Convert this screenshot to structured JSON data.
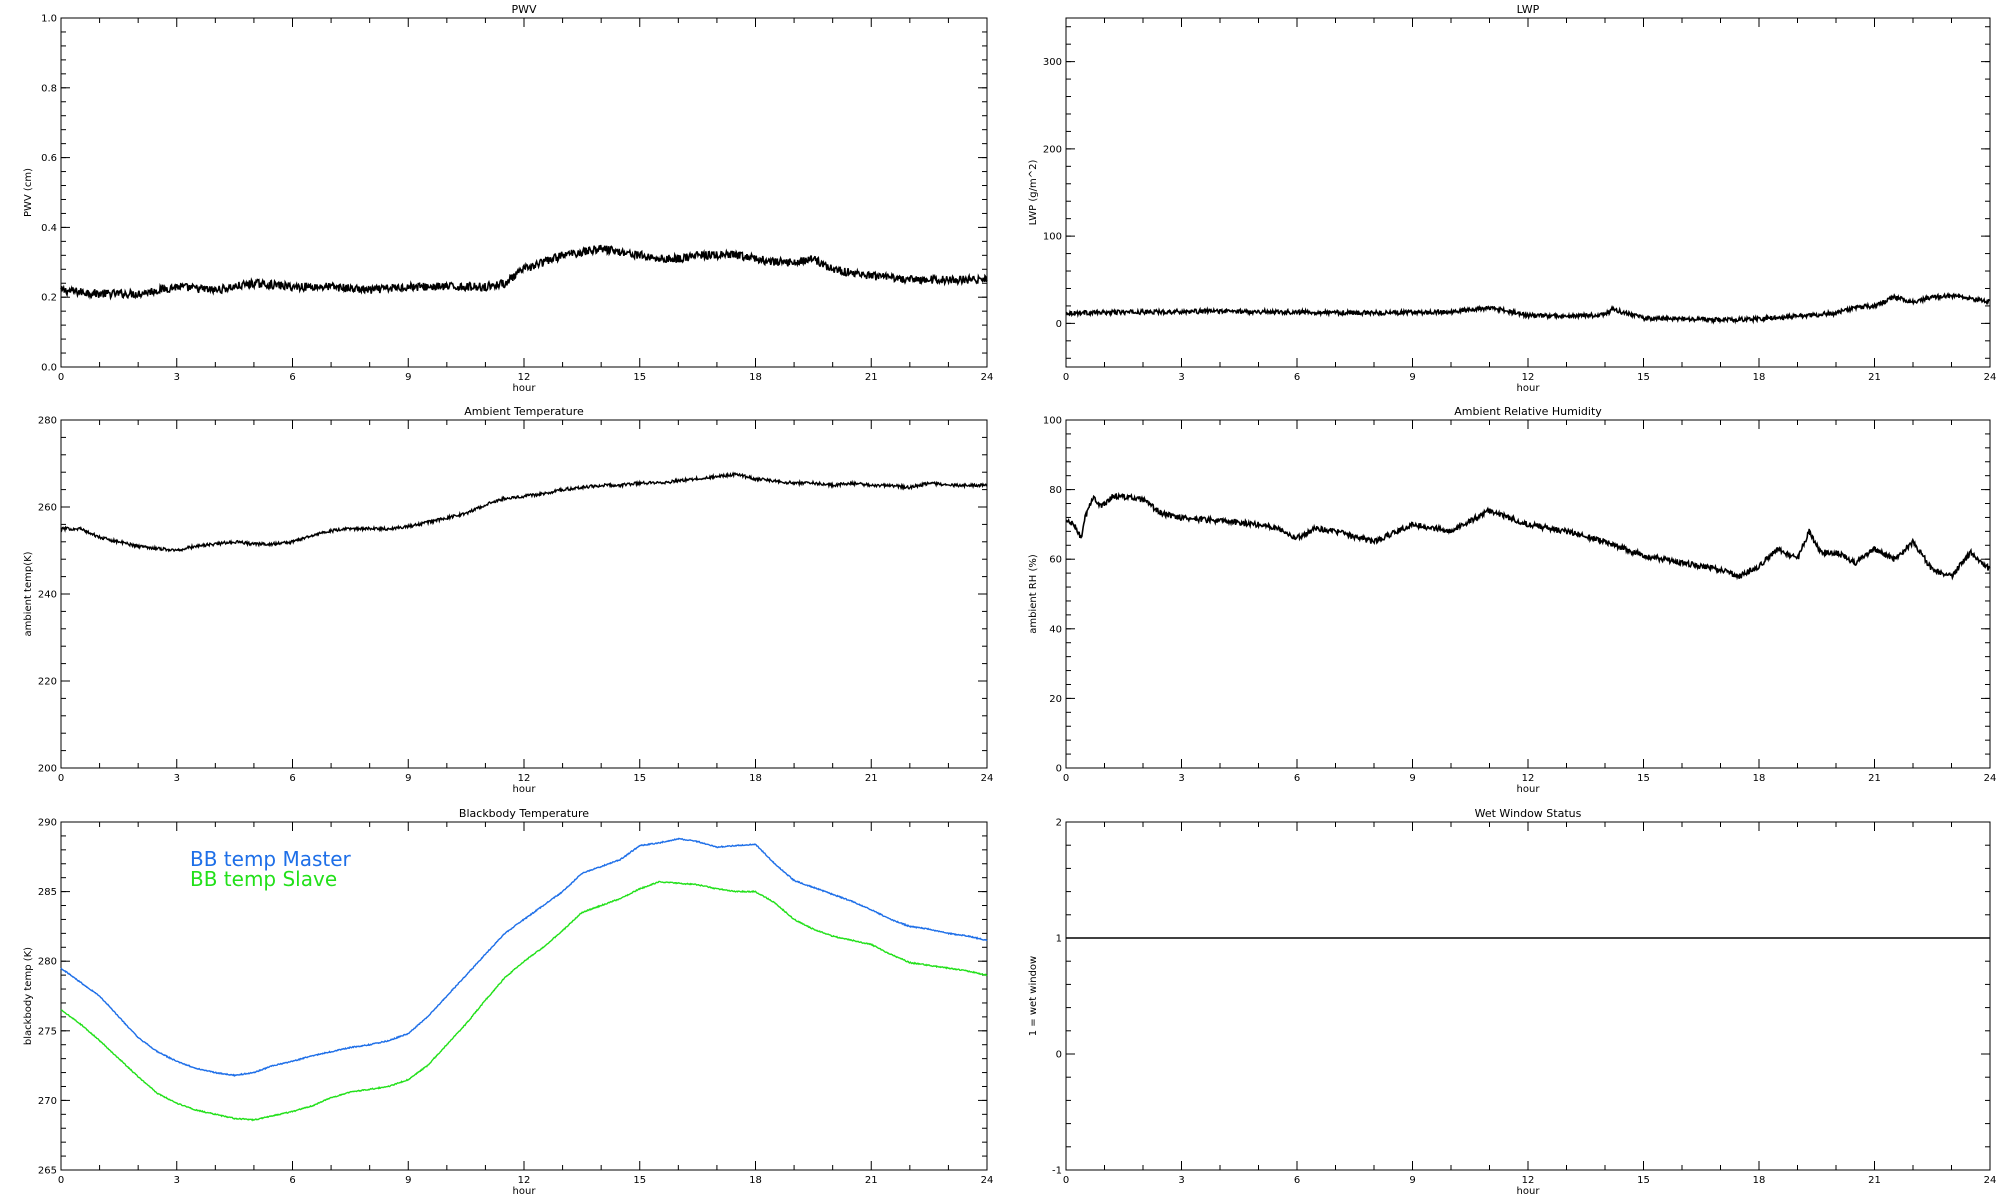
{
  "chart_data": [
    {
      "id": "pwv",
      "type": "line",
      "title": "PWV",
      "xlabel": "hour",
      "ylabel": "PWV (cm)",
      "xlim": [
        0,
        24
      ],
      "ylim": [
        0,
        1
      ],
      "xticks": [
        "0",
        "3",
        "6",
        "9",
        "12",
        "15",
        "18",
        "21",
        "24"
      ],
      "yticks": [
        "0.0",
        "0.2",
        "0.4",
        "0.6",
        "0.8",
        "1.0"
      ],
      "series": [
        {
          "color": "#000000",
          "noise": 0.012,
          "x": [
            0,
            1,
            2,
            3,
            4,
            5,
            6,
            7,
            8,
            9,
            10,
            10.5,
            11,
            11.5,
            12,
            12.5,
            13,
            13.5,
            14,
            14.5,
            15,
            15.5,
            16,
            16.5,
            17,
            17.5,
            18,
            18.5,
            19,
            19.5,
            20,
            21,
            22,
            23,
            24
          ],
          "y": [
            0.22,
            0.21,
            0.21,
            0.23,
            0.22,
            0.24,
            0.23,
            0.23,
            0.22,
            0.23,
            0.23,
            0.23,
            0.23,
            0.24,
            0.28,
            0.3,
            0.32,
            0.33,
            0.34,
            0.33,
            0.32,
            0.31,
            0.31,
            0.32,
            0.32,
            0.32,
            0.31,
            0.3,
            0.3,
            0.31,
            0.28,
            0.26,
            0.25,
            0.25,
            0.25
          ]
        }
      ]
    },
    {
      "id": "lwp",
      "type": "line",
      "title": "LWP",
      "xlabel": "hour",
      "ylabel": "LWP (g/m^2)",
      "xlim": [
        0,
        24
      ],
      "ylim": [
        -50,
        350
      ],
      "xticks": [
        "0",
        "3",
        "6",
        "9",
        "12",
        "15",
        "18",
        "21",
        "24"
      ],
      "yticks": [
        "0",
        "100",
        "200",
        "300"
      ],
      "series": [
        {
          "color": "#000000",
          "noise": 2.5,
          "x": [
            0,
            2,
            4,
            6,
            8,
            10,
            11,
            12,
            13,
            14,
            14.2,
            15,
            16,
            17,
            18,
            19,
            20,
            20.5,
            21,
            21.5,
            22,
            22.5,
            23,
            23.5,
            24
          ],
          "y": [
            12,
            13,
            14,
            13,
            12,
            13,
            18,
            9,
            8,
            10,
            16,
            6,
            5,
            4,
            5,
            8,
            12,
            18,
            20,
            30,
            25,
            30,
            32,
            28,
            25
          ]
        }
      ]
    },
    {
      "id": "ambient-temp",
      "type": "line",
      "title": "Ambient Temperature",
      "xlabel": "hour",
      "ylabel": "ambient temp(K)",
      "xlim": [
        0,
        24
      ],
      "ylim": [
        200,
        280
      ],
      "xticks": [
        "0",
        "3",
        "6",
        "9",
        "12",
        "15",
        "18",
        "21",
        "24"
      ],
      "yticks": [
        "200",
        "220",
        "240",
        "260",
        "280"
      ],
      "series": [
        {
          "color": "#000000",
          "noise": 0.35,
          "x": [
            0,
            0.5,
            1,
            1.5,
            2,
            2.5,
            3,
            3.5,
            4,
            4.5,
            5,
            5.5,
            6,
            6.5,
            7,
            7.5,
            8,
            8.5,
            9,
            9.5,
            10,
            10.5,
            11,
            11.5,
            12,
            12.5,
            13,
            13.5,
            14,
            14.5,
            15,
            15.5,
            16,
            16.5,
            17,
            17.5,
            18,
            18.5,
            19,
            19.5,
            20,
            20.5,
            21,
            21.5,
            22,
            22.5,
            23,
            23.5,
            24
          ],
          "y": [
            255,
            255,
            253,
            252,
            251,
            250.5,
            250,
            251,
            251.5,
            252,
            251.5,
            251.5,
            252,
            253.5,
            254.5,
            255,
            255,
            255,
            255.5,
            256.5,
            257.5,
            258.5,
            260.5,
            262,
            262.5,
            263,
            264,
            264.5,
            265,
            265,
            265.5,
            265.5,
            266,
            266.5,
            267,
            267.5,
            266.5,
            266,
            265.5,
            265.5,
            265,
            265.5,
            265,
            265,
            264.5,
            265.5,
            265,
            265,
            265
          ]
        }
      ]
    },
    {
      "id": "ambient-rh",
      "type": "line",
      "title": "Ambient Relative Humidity",
      "xlabel": "hour",
      "ylabel": "ambient RH (%)",
      "xlim": [
        0,
        24
      ],
      "ylim": [
        0,
        100
      ],
      "xticks": [
        "0",
        "3",
        "6",
        "9",
        "12",
        "15",
        "18",
        "21",
        "24"
      ],
      "yticks": [
        "0",
        "20",
        "40",
        "60",
        "80",
        "100"
      ],
      "series": [
        {
          "color": "#000000",
          "noise": 0.8,
          "x": [
            0,
            0.2,
            0.4,
            0.5,
            0.7,
            0.9,
            1.2,
            1.5,
            2,
            2.5,
            3,
            4,
            5,
            5.5,
            6,
            6.5,
            7,
            8,
            9,
            9.5,
            10,
            10.5,
            11,
            11.5,
            12,
            13,
            14,
            15,
            16,
            17,
            17.5,
            18,
            18.5,
            19,
            19.3,
            19.6,
            20,
            20.5,
            21,
            21.5,
            22,
            22.5,
            23,
            23.5,
            24
          ],
          "y": [
            71,
            70,
            66,
            72,
            78,
            75,
            78,
            78,
            77,
            73,
            72,
            71,
            70,
            69,
            66,
            69,
            68,
            65,
            70,
            69,
            68,
            71,
            74,
            72,
            70,
            68,
            65,
            61,
            59,
            57,
            55,
            58,
            63,
            60,
            68,
            62,
            62,
            59,
            63,
            60,
            65,
            57,
            55,
            62,
            57
          ]
        }
      ]
    },
    {
      "id": "blackbody-temp",
      "type": "line",
      "title": "Blackbody Temperature",
      "xlabel": "hour",
      "ylabel": "blackbody temp (K)",
      "xlim": [
        0,
        24
      ],
      "ylim": [
        265,
        290
      ],
      "xticks": [
        "0",
        "3",
        "6",
        "9",
        "12",
        "15",
        "18",
        "21",
        "24"
      ],
      "yticks": [
        "265",
        "270",
        "275",
        "280",
        "285",
        "290"
      ],
      "series": [
        {
          "name": "BB temp Master",
          "color": "#1e6fe8",
          "noise": 0.04,
          "x": [
            0,
            0.5,
            1,
            1.5,
            2,
            2.5,
            3,
            3.5,
            4,
            4.5,
            5,
            5.5,
            6,
            6.5,
            7,
            7.5,
            8,
            8.5,
            9,
            9.5,
            10,
            10.5,
            11,
            11.5,
            12,
            12.5,
            13,
            13.5,
            14,
            14.5,
            15,
            15.5,
            16,
            16.5,
            17,
            17.5,
            18,
            18.5,
            19,
            19.5,
            20,
            20.5,
            21,
            21.5,
            22,
            22.5,
            23,
            23.5,
            24
          ],
          "y": [
            279.5,
            278.5,
            277.5,
            276,
            274.5,
            273.5,
            272.8,
            272.3,
            272,
            271.8,
            272,
            272.5,
            272.8,
            273.2,
            273.5,
            273.8,
            274,
            274.3,
            274.8,
            276,
            277.5,
            279,
            280.5,
            282,
            283,
            284,
            285,
            286.3,
            286.8,
            287.3,
            288.3,
            288.5,
            288.8,
            288.6,
            288.2,
            288.3,
            288.4,
            287,
            285.8,
            285.3,
            284.8,
            284.3,
            283.7,
            283,
            282.5,
            282.3,
            282,
            281.8,
            281.5
          ]
        },
        {
          "name": "BB temp Slave",
          "color": "#22e01a",
          "noise": 0.04,
          "x": [
            0,
            0.5,
            1,
            1.5,
            2,
            2.5,
            3,
            3.5,
            4,
            4.5,
            5,
            5.5,
            6,
            6.5,
            7,
            7.5,
            8,
            8.5,
            9,
            9.5,
            10,
            10.5,
            11,
            11.5,
            12,
            12.5,
            13,
            13.5,
            14,
            14.5,
            15,
            15.5,
            16,
            16.5,
            17,
            17.5,
            18,
            18.5,
            19,
            19.5,
            20,
            20.5,
            21,
            21.5,
            22,
            22.5,
            23,
            23.5,
            24
          ],
          "y": [
            276.5,
            275.5,
            274.3,
            273,
            271.7,
            270.5,
            269.8,
            269.3,
            269,
            268.7,
            268.6,
            268.9,
            269.2,
            269.6,
            270.2,
            270.6,
            270.8,
            271,
            271.5,
            272.5,
            274,
            275.5,
            277.2,
            278.8,
            280,
            281,
            282.2,
            283.5,
            284,
            284.5,
            285.2,
            285.7,
            285.6,
            285.5,
            285.2,
            285,
            285,
            284.2,
            283,
            282.3,
            281.8,
            281.5,
            281.2,
            280.5,
            279.9,
            279.7,
            279.5,
            279.3,
            279
          ]
        }
      ],
      "legend": {
        "placement": "top-left",
        "labels": [
          "BB temp Master",
          "BB temp Slave"
        ]
      }
    },
    {
      "id": "wet-window",
      "type": "line",
      "title": "Wet Window Status",
      "xlabel": "hour",
      "ylabel": "1 = wet window",
      "xlim": [
        0,
        24
      ],
      "ylim": [
        -1,
        2
      ],
      "xticks": [
        "0",
        "3",
        "6",
        "9",
        "12",
        "15",
        "18",
        "21",
        "24"
      ],
      "yticks": [
        "-1",
        "0",
        "1",
        "2"
      ],
      "series": [
        {
          "color": "#000000",
          "noise": 0,
          "x": [
            0,
            24
          ],
          "y": [
            1,
            1
          ]
        }
      ]
    }
  ]
}
